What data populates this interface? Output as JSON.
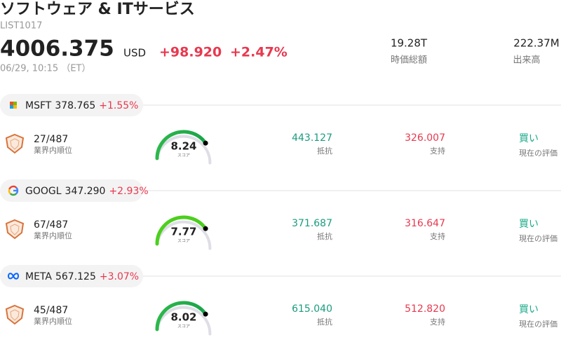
{
  "header": {
    "title": "ソフトウェア & ITサービス",
    "code": "LIST1017",
    "price": "4006.375",
    "currency": "USD",
    "change": "+98.920",
    "change_pct": "+2.47%",
    "datetime": "06/29, 10:15 （ET）",
    "market_cap": "19.28T",
    "market_cap_label": "時価総額",
    "volume": "222.37M",
    "volume_label": "出来高"
  },
  "stocks": [
    {
      "ticker": "MSFT",
      "price": "378.765",
      "change_pct": "+1.55%",
      "rank": "27/487",
      "rank_label": "業界内順位",
      "score": "8.24",
      "score_label": "スコア",
      "resistance": "443.127",
      "resistance_label": "抵抗",
      "support": "326.007",
      "support_label": "支持",
      "rating": "買い",
      "rating_label": "現在の評価"
    },
    {
      "ticker": "GOOGL",
      "price": "347.290",
      "change_pct": "+2.93%",
      "rank": "67/487",
      "rank_label": "業界内順位",
      "score": "7.77",
      "score_label": "スコア",
      "resistance": "371.687",
      "resistance_label": "抵抗",
      "support": "316.647",
      "support_label": "支持",
      "rating": "買い",
      "rating_label": "現在の評価"
    },
    {
      "ticker": "META",
      "price": "567.125",
      "change_pct": "+3.07%",
      "rank": "45/487",
      "rank_label": "業界内順位",
      "score": "8.02",
      "score_label": "スコア",
      "resistance": "615.040",
      "resistance_label": "抵抗",
      "support": "512.820",
      "support_label": "支持",
      "rating": "買い",
      "rating_label": "現在の評価"
    }
  ]
}
